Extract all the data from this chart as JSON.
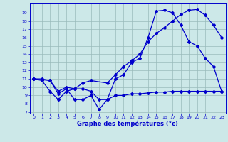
{
  "line1_x": [
    0,
    1,
    2,
    3,
    4,
    5,
    6,
    7,
    8,
    9,
    10,
    11,
    12,
    13,
    14,
    15,
    16,
    17,
    18,
    19,
    20,
    21,
    22,
    23
  ],
  "line1_y": [
    11,
    10.8,
    9.5,
    8.5,
    9.5,
    9.8,
    9.8,
    9.5,
    8.5,
    8.5,
    11,
    11.5,
    13,
    13.5,
    16,
    19.2,
    19.3,
    19.0,
    17.5,
    15.5,
    15.0,
    13.5,
    12.5,
    9.5
  ],
  "line2_x": [
    0,
    2,
    3,
    4,
    5,
    6,
    7,
    9,
    10,
    11,
    12,
    13,
    14,
    15,
    16,
    17,
    18,
    19,
    20,
    21,
    22,
    23
  ],
  "line2_y": [
    11,
    10.8,
    9.5,
    10,
    9.8,
    10.5,
    10.8,
    10.5,
    11.5,
    12.5,
    13.2,
    14.0,
    15.5,
    16.5,
    17.2,
    18.0,
    18.8,
    19.3,
    19.4,
    18.7,
    17.5,
    16.0
  ],
  "line3_x": [
    0,
    1,
    2,
    3,
    4,
    5,
    6,
    7,
    8,
    9,
    10,
    11,
    12,
    13,
    14,
    15,
    16,
    17,
    18,
    19,
    20,
    21,
    22,
    23
  ],
  "line3_y": [
    11,
    11,
    10.8,
    9.2,
    9.8,
    8.5,
    8.5,
    9.0,
    7.3,
    8.5,
    9.0,
    9.0,
    9.2,
    9.2,
    9.3,
    9.4,
    9.4,
    9.5,
    9.5,
    9.5,
    9.5,
    9.5,
    9.5,
    9.5
  ],
  "xlabel": "Graphe des températures (°c)",
  "xlim": [
    -0.5,
    23.5
  ],
  "ylim": [
    6.8,
    20.2
  ],
  "yticks": [
    7,
    8,
    9,
    10,
    11,
    12,
    13,
    14,
    15,
    16,
    17,
    18,
    19
  ],
  "xticks": [
    0,
    1,
    2,
    3,
    4,
    5,
    6,
    7,
    8,
    9,
    10,
    11,
    12,
    13,
    14,
    15,
    16,
    17,
    18,
    19,
    20,
    21,
    22,
    23
  ],
  "line_color": "#0000cc",
  "bg_color": "#cce8e8",
  "grid_color": "#99bbbb",
  "axis_color": "#0000cc",
  "marker": "D",
  "marker_size": 2.0,
  "line_width": 0.9
}
